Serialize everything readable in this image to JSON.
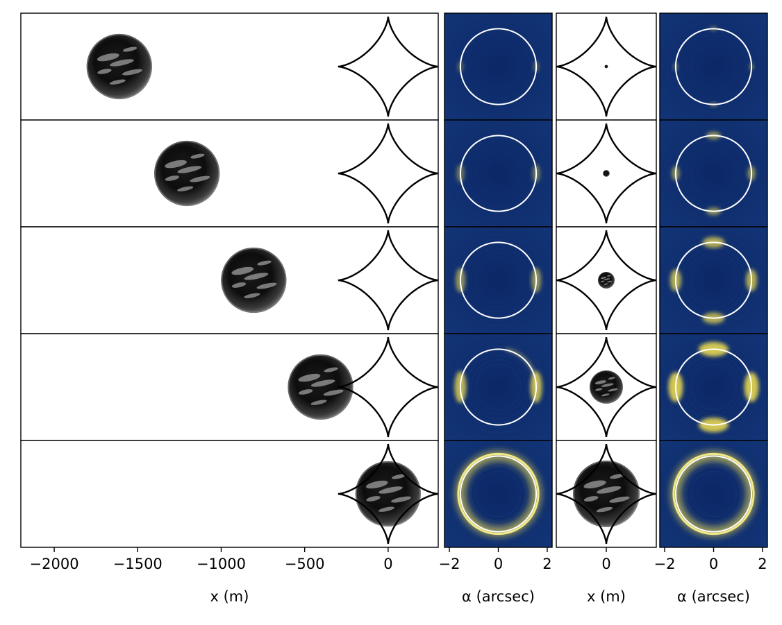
{
  "chart_data": [
    {
      "type": "scatter",
      "panel": "source-positions-wide",
      "xlabel": "x (m)",
      "ylabel": "",
      "xlim": [
        -2200,
        300
      ],
      "xticks": [
        -2000,
        -1500,
        -1000,
        -500,
        0
      ],
      "xtick_labels": [
        "−2000",
        "−1500",
        "−1000",
        "−500",
        "0"
      ],
      "caustic_center_x": 0,
      "caustic_half_width": 300,
      "rows": [
        {
          "source_center_x": -1610,
          "source_radius": 200
        },
        {
          "source_center_x": -1205,
          "source_radius": 200
        },
        {
          "source_center_x": -805,
          "source_radius": 200
        },
        {
          "source_center_x": -405,
          "source_radius": 200
        },
        {
          "source_center_x": 0,
          "source_radius": 200
        }
      ]
    },
    {
      "type": "heatmap",
      "panel": "image-plane-a",
      "xlabel": "α (arcsec)",
      "xlim": [
        -2.2,
        2.2
      ],
      "xticks": [
        -2,
        0,
        2
      ],
      "xtick_labels": [
        "−2",
        "0",
        "2"
      ],
      "einstein_radius": 1.55,
      "colormap": [
        "#0b2a6b",
        "#1f3f7a",
        "#8a8f7a",
        "#ffe94d"
      ],
      "rows": [
        {
          "brightness": 0.35,
          "arc_extent": "points"
        },
        {
          "brightness": 0.45,
          "arc_extent": "points"
        },
        {
          "brightness": 0.6,
          "arc_extent": "short arcs"
        },
        {
          "brightness": 0.8,
          "arc_extent": "arcs"
        },
        {
          "brightness": 1.0,
          "arc_extent": "ring"
        }
      ]
    },
    {
      "type": "scatter",
      "panel": "source-positions-zoom",
      "xlabel": "x (m)",
      "xlim": [
        -300,
        300
      ],
      "xticks": [
        0
      ],
      "xtick_labels": [
        "0"
      ],
      "rows": [
        {
          "source_radius": 10
        },
        {
          "source_radius": 20
        },
        {
          "source_radius": 50
        },
        {
          "source_radius": 100
        },
        {
          "source_radius": 200
        }
      ]
    },
    {
      "type": "heatmap",
      "panel": "image-plane-b",
      "xlabel": "α (arcsec)",
      "xlim": [
        -2.2,
        2.2
      ],
      "xticks": [
        -2,
        0,
        2
      ],
      "xtick_labels": [
        "−2",
        "0",
        "2"
      ],
      "einstein_radius": 1.55,
      "rows": [
        {
          "brightness": 0.5,
          "arc_extent": "four points"
        },
        {
          "brightness": 0.6,
          "arc_extent": "four points"
        },
        {
          "brightness": 0.75,
          "arc_extent": "four short arcs"
        },
        {
          "brightness": 0.9,
          "arc_extent": "four arcs"
        },
        {
          "brightness": 1.0,
          "arc_extent": "ring"
        }
      ]
    }
  ]
}
